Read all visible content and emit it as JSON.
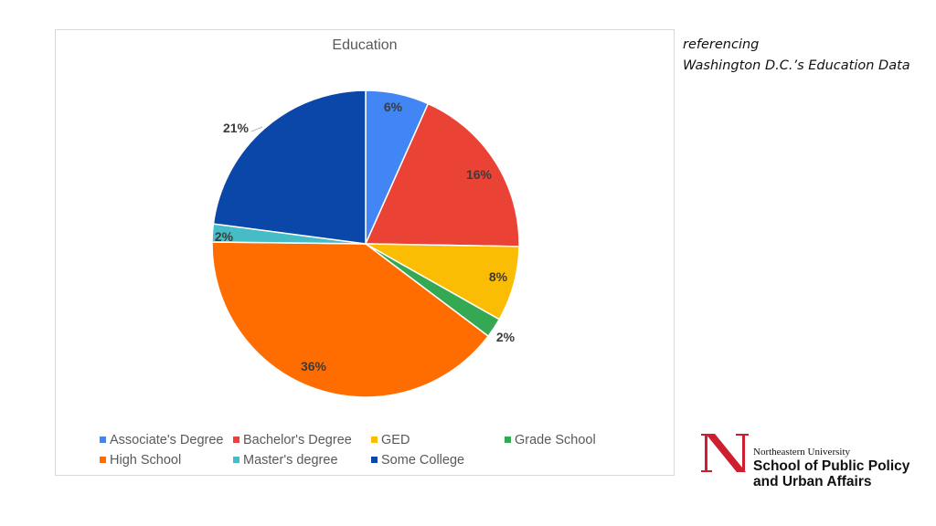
{
  "chart_data": {
    "type": "pie",
    "title": "Education",
    "categories": [
      "Associate's Degree",
      "Bachelor's Degree",
      "GED",
      "Grade School",
      "High School",
      "Master's degree",
      "Some College"
    ],
    "values": [
      6,
      16,
      8,
      2,
      36,
      2,
      21
    ],
    "value_labels": [
      "6%",
      "16%",
      "8%",
      "2%",
      "36%",
      "2%",
      "21%"
    ],
    "slice_angles_deg": [
      24,
      67,
      28.5,
      7.5,
      143.7,
      6.8,
      82.5
    ],
    "colors": [
      "#4285f4",
      "#ea4335",
      "#fbbc04",
      "#34a853",
      "#ff6d01",
      "#46bdc6",
      "#0b47a9"
    ],
    "legend_position": "bottom",
    "start_angle": "top, clockwise"
  },
  "chart": {
    "title": "Education",
    "legend": [
      {
        "label": "Associate's Degree",
        "color": "#4285f4"
      },
      {
        "label": "Bachelor's Degree",
        "color": "#ea4335"
      },
      {
        "label": "GED",
        "color": "#fbbc04"
      },
      {
        "label": "Grade School",
        "color": "#34a853"
      },
      {
        "label": "High School",
        "color": "#ff6d01"
      },
      {
        "label": "Master's degree",
        "color": "#46bdc6"
      },
      {
        "label": "Some College",
        "color": "#0b47a9"
      }
    ]
  },
  "reference": {
    "line1": "referencing",
    "line2": "Washington D.C.’s Education Data"
  },
  "logo": {
    "university": "Northeastern University",
    "school_line1": "School of Public Policy",
    "school_line2": "and Urban Affairs",
    "brand_color": "#cc1f2f"
  }
}
